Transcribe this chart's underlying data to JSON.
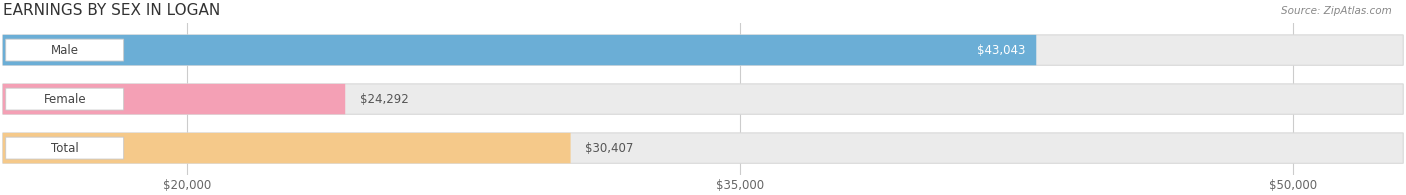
{
  "title": "EARNINGS BY SEX IN LOGAN",
  "source": "Source: ZipAtlas.com",
  "categories": [
    "Male",
    "Female",
    "Total"
  ],
  "values": [
    43043,
    24292,
    30407
  ],
  "x_min": 15000,
  "x_max": 53000,
  "bar_colors": [
    "#6baed6",
    "#f4a0b5",
    "#f5c98a"
  ],
  "bar_bg_color": "#ebebeb",
  "bar_border_color": "#d8d8d8",
  "value_label_inside": [
    true,
    false,
    false
  ],
  "tick_values": [
    20000,
    35000,
    50000
  ],
  "tick_labels": [
    "$20,000",
    "$35,000",
    "$50,000"
  ],
  "background_color": "#ffffff",
  "title_fontsize": 11,
  "bar_height": 0.62,
  "figsize": [
    14.06,
    1.95
  ],
  "dpi": 100
}
